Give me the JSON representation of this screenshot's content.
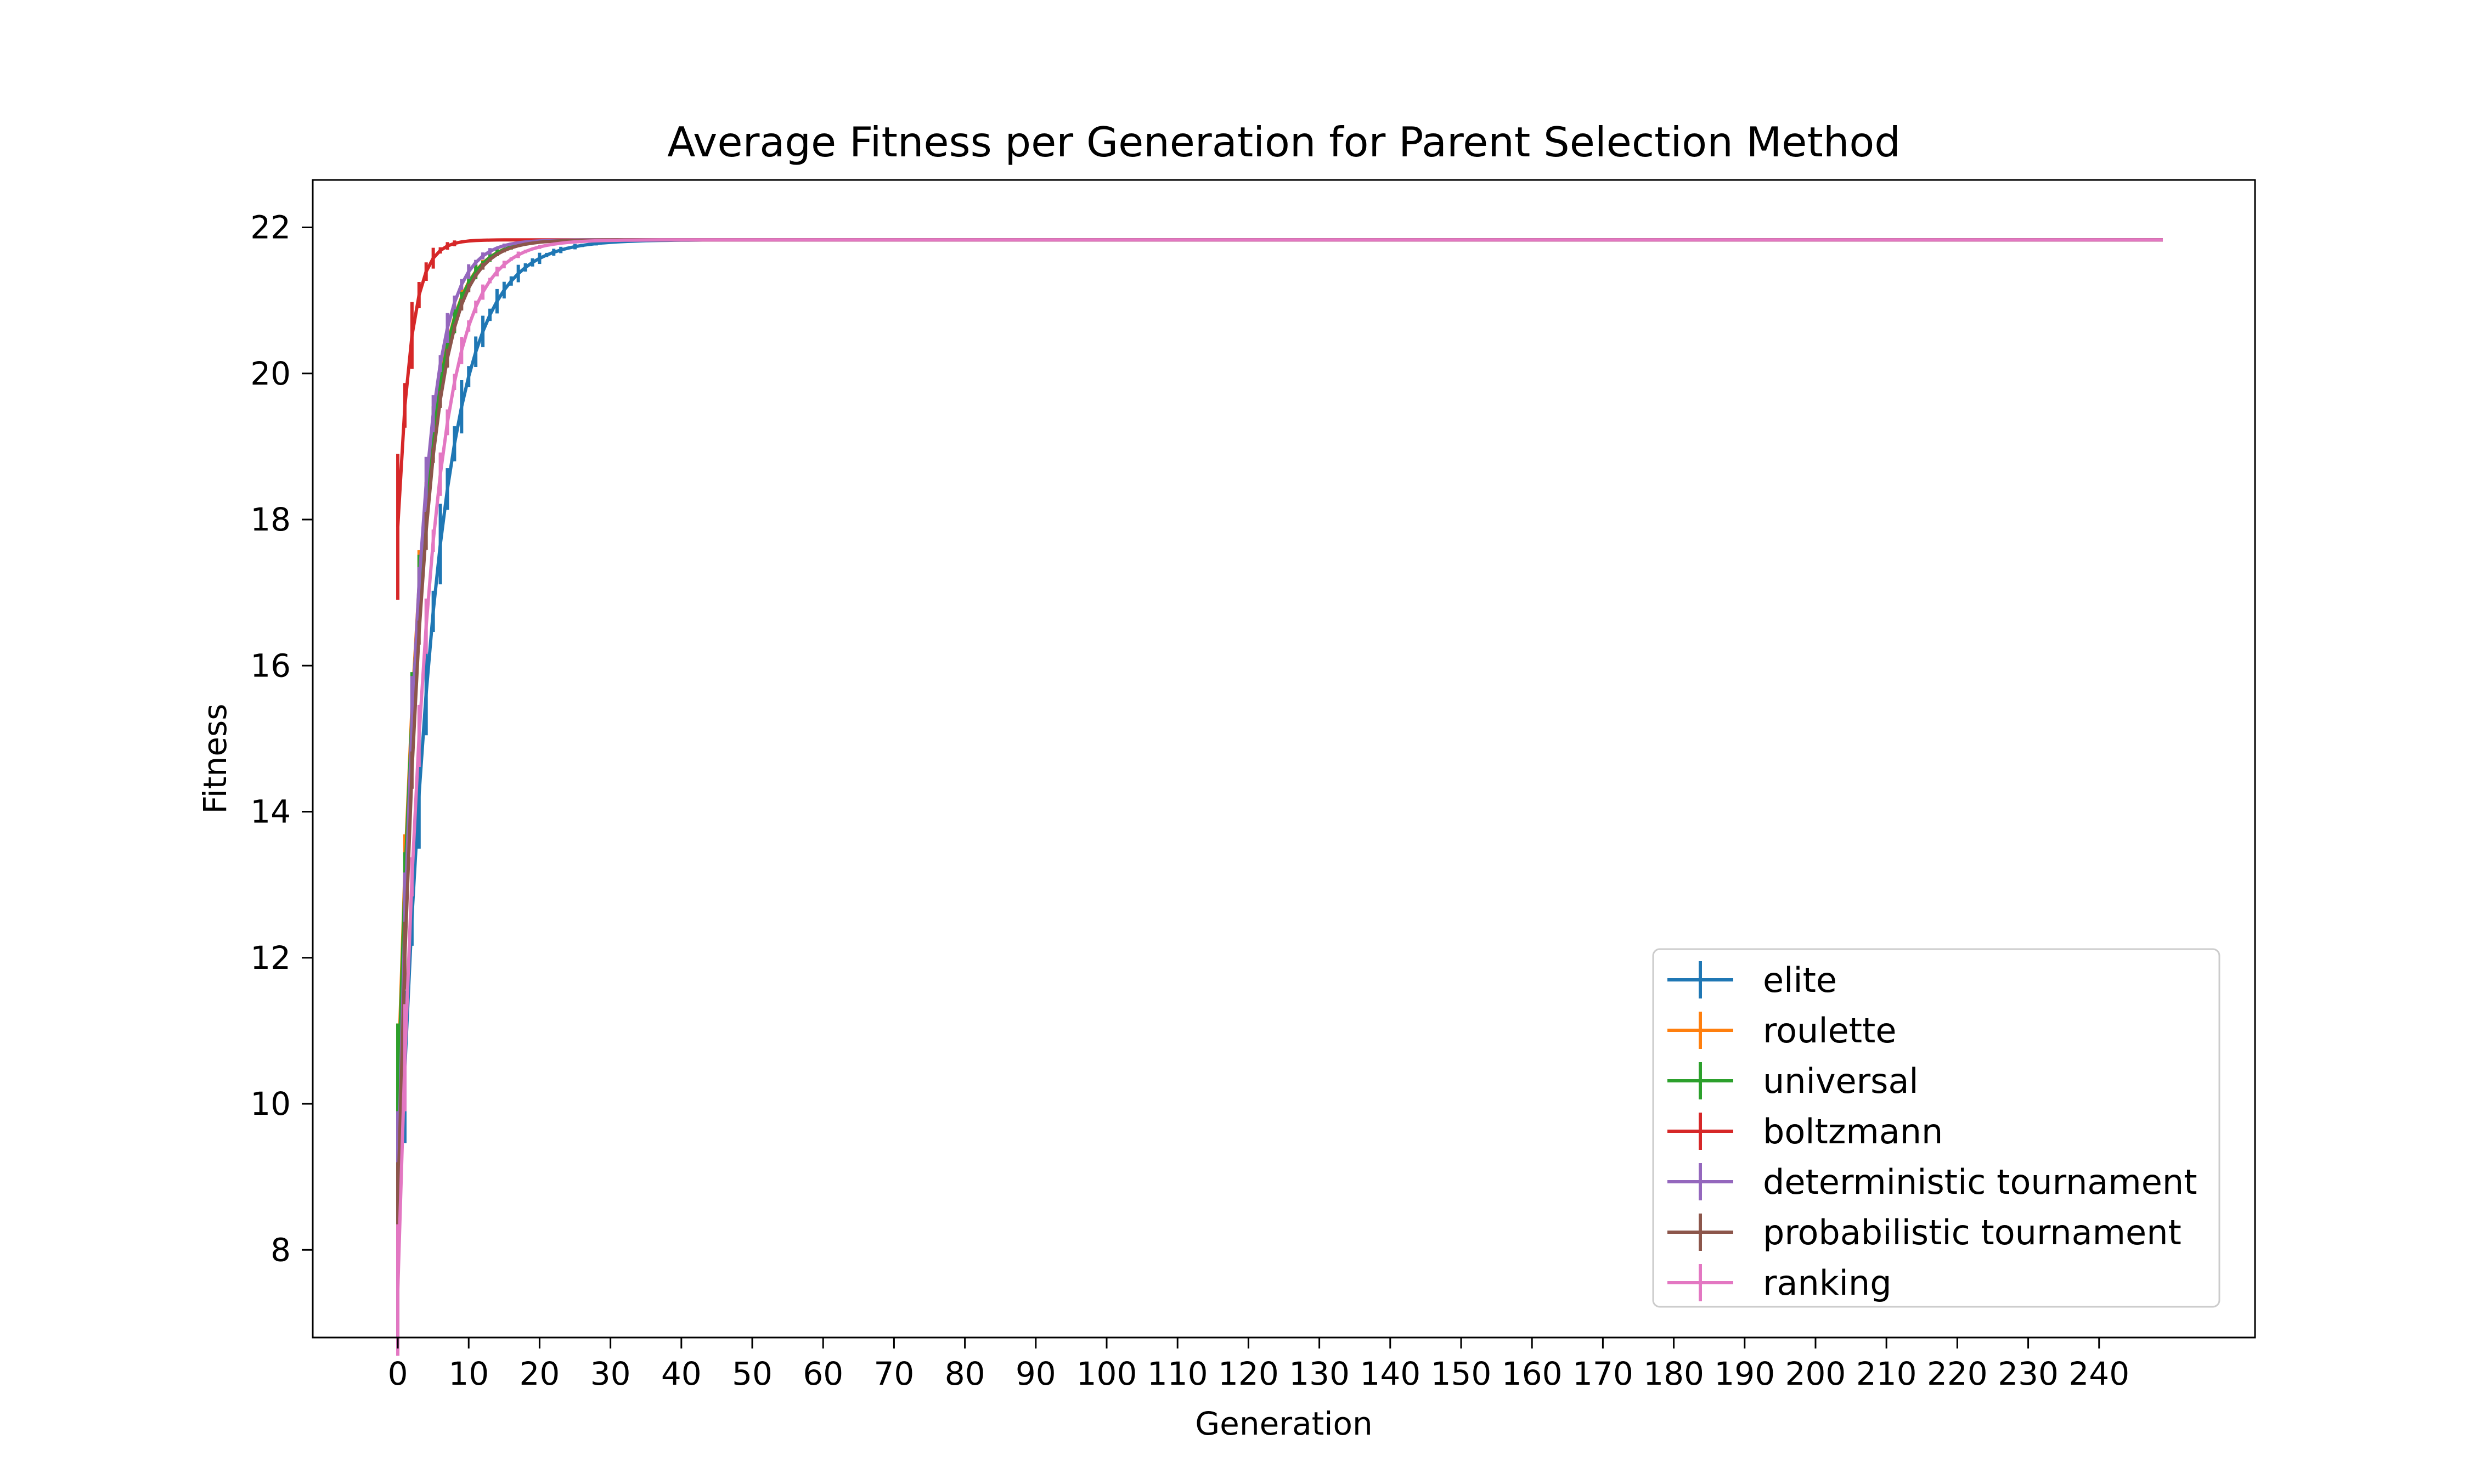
{
  "chart_data": {
    "type": "line",
    "title": "Average Fitness per Generation for Parent Selection Method",
    "xlabel": "Generation",
    "ylabel": "Fitness",
    "xlim": [
      -12,
      262
    ],
    "ylim": [
      6.8,
      22.65
    ],
    "x_ticks": [
      0,
      10,
      20,
      30,
      40,
      50,
      60,
      70,
      80,
      90,
      100,
      110,
      120,
      130,
      140,
      150,
      160,
      170,
      180,
      190,
      200,
      210,
      220,
      230,
      240
    ],
    "x_tick_labels": [
      "0",
      "10",
      "20",
      "30",
      "40",
      "50",
      "60",
      "70",
      "80",
      "90",
      "100",
      "110",
      "120",
      "130",
      "140",
      "150",
      "160",
      "170",
      "180",
      "190",
      "200",
      "210",
      "220",
      "230",
      "240"
    ],
    "y_ticks": [
      8,
      10,
      12,
      14,
      16,
      18,
      20,
      22
    ],
    "y_tick_labels": [
      "8",
      "10",
      "12",
      "14",
      "16",
      "18",
      "20",
      "22"
    ],
    "x_max": 249,
    "plateau": 21.83,
    "grid": false,
    "legend_position": "lower-right",
    "error_bars": true,
    "series": [
      {
        "name": "elite",
        "color": "#1f77b4",
        "start": 8.0,
        "rate": 0.2,
        "err": 1.3
      },
      {
        "name": "roulette",
        "color": "#ff7f0e",
        "start": 10.2,
        "rate": 0.3,
        "err": 0.9
      },
      {
        "name": "universal",
        "color": "#2ca02c",
        "start": 10.0,
        "rate": 0.3,
        "err": 1.1
      },
      {
        "name": "boltzmann",
        "color": "#d62728",
        "start": 17.9,
        "rate": 0.55,
        "err": 1.0
      },
      {
        "name": "deterministic tournament",
        "color": "#9467bd",
        "start": 8.8,
        "rate": 0.34,
        "err": 1.1
      },
      {
        "name": "probabilistic tournament",
        "color": "#8c564b",
        "start": 8.6,
        "rate": 0.3,
        "err": 0.6
      },
      {
        "name": "ranking",
        "color": "#e377c2",
        "start": 7.45,
        "rate": 0.25,
        "err": 0.9
      }
    ]
  }
}
